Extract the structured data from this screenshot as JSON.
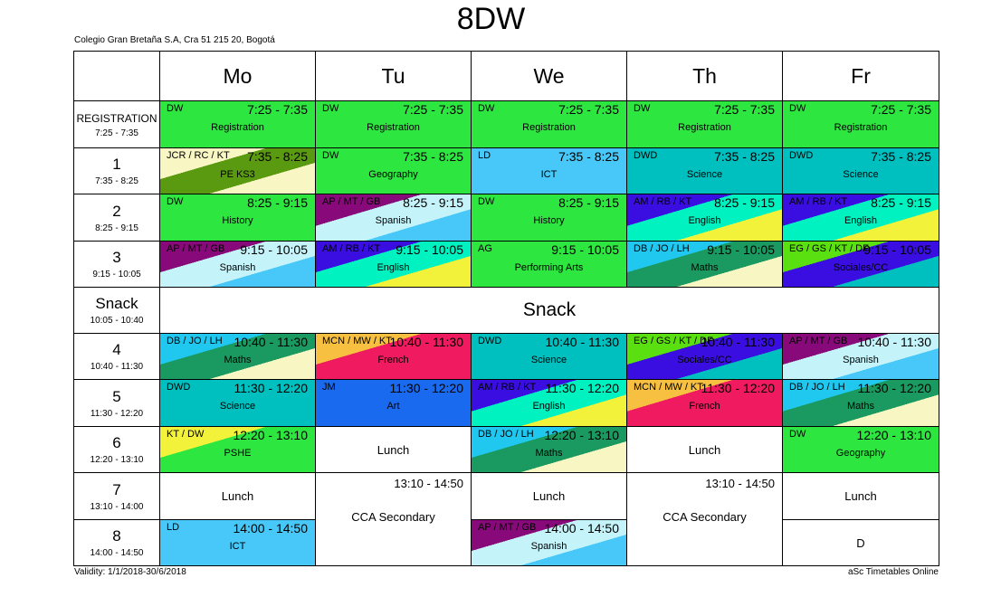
{
  "title": "8DW",
  "school": "Colegio Gran Bretaña S.A, Cra 51 215 20, Bogotá",
  "validity": "Validity: 1/1/2018-30/6/2018",
  "credit": "aSc Timetables Online",
  "days": [
    "Mo",
    "Tu",
    "We",
    "Th",
    "Fr"
  ],
  "periods": [
    {
      "name": "REGISTRATION",
      "time": "7:25 - 7:35"
    },
    {
      "name": "1",
      "time": "7:35 - 8:25"
    },
    {
      "name": "2",
      "time": "8:25 - 9:15"
    },
    {
      "name": "3",
      "time": "9:15 - 10:05"
    },
    {
      "name": "Snack",
      "time": "10:05 - 10:40"
    },
    {
      "name": "4",
      "time": "10:40 - 11:30"
    },
    {
      "name": "5",
      "time": "11:30 - 12:20"
    },
    {
      "name": "6",
      "time": "12:20 - 13:10"
    },
    {
      "name": "7",
      "time": "13:10 - 14:00"
    },
    {
      "name": "8",
      "time": "14:00 - 14:50"
    }
  ],
  "snack_label": "Snack",
  "lessons": [
    {
      "day": 0,
      "row": 0,
      "teacher": "DW",
      "time": "7:25 - 7:35",
      "subject": "Registration",
      "colors": [
        "#2ee640"
      ]
    },
    {
      "day": 1,
      "row": 0,
      "teacher": "DW",
      "time": "7:25 - 7:35",
      "subject": "Registration",
      "colors": [
        "#2ee640"
      ]
    },
    {
      "day": 2,
      "row": 0,
      "teacher": "DW",
      "time": "7:25 - 7:35",
      "subject": "Registration",
      "colors": [
        "#2ee640"
      ]
    },
    {
      "day": 3,
      "row": 0,
      "teacher": "DW",
      "time": "7:25 - 7:35",
      "subject": "Registration",
      "colors": [
        "#2ee640"
      ]
    },
    {
      "day": 4,
      "row": 0,
      "teacher": "DW",
      "time": "7:25 - 7:35",
      "subject": "Registration",
      "colors": [
        "#2ee640"
      ]
    },
    {
      "day": 0,
      "row": 1,
      "teacher": "JCR / RC / KT",
      "time": "7:35 - 8:25",
      "subject": "PE KS3",
      "colors": [
        "#f8f7c4",
        "#5a9a10",
        "#f8f7c4"
      ]
    },
    {
      "day": 1,
      "row": 1,
      "teacher": "DW",
      "time": "7:35 - 8:25",
      "subject": "Geography",
      "colors": [
        "#2ee640"
      ]
    },
    {
      "day": 2,
      "row": 1,
      "teacher": "LD",
      "time": "7:35 - 8:25",
      "subject": "ICT",
      "colors": [
        "#47c8f8"
      ]
    },
    {
      "day": 3,
      "row": 1,
      "teacher": "DWD",
      "time": "7:35 - 8:25",
      "subject": "Science",
      "colors": [
        "#00bfbf"
      ]
    },
    {
      "day": 4,
      "row": 1,
      "teacher": "DWD",
      "time": "7:35 - 8:25",
      "subject": "Science",
      "colors": [
        "#00bfbf"
      ]
    },
    {
      "day": 0,
      "row": 2,
      "teacher": "DW",
      "time": "8:25 - 9:15",
      "subject": "History",
      "colors": [
        "#2ee640"
      ]
    },
    {
      "day": 1,
      "row": 2,
      "teacher": "AP / MT / GB",
      "time": "8:25 - 9:15",
      "subject": "Spanish",
      "colors": [
        "#880a7a",
        "#c4f4fa",
        "#47c8f8"
      ]
    },
    {
      "day": 2,
      "row": 2,
      "teacher": "DW",
      "time": "8:25 - 9:15",
      "subject": "History",
      "colors": [
        "#2ee640"
      ]
    },
    {
      "day": 3,
      "row": 2,
      "teacher": "AM / RB / KT",
      "time": "8:25 - 9:15",
      "subject": "English",
      "colors": [
        "#3a0ee0",
        "#00f2c0",
        "#f2f23a"
      ]
    },
    {
      "day": 4,
      "row": 2,
      "teacher": "AM / RB / KT",
      "time": "8:25 - 9:15",
      "subject": "English",
      "colors": [
        "#3a0ee0",
        "#00f2c0",
        "#f2f23a"
      ]
    },
    {
      "day": 0,
      "row": 3,
      "teacher": "AP / MT / GB",
      "time": "9:15 - 10:05",
      "subject": "Spanish",
      "colors": [
        "#880a7a",
        "#c4f4fa",
        "#47c8f8"
      ]
    },
    {
      "day": 1,
      "row": 3,
      "teacher": "AM / RB / KT",
      "time": "9:15 - 10:05",
      "subject": "English",
      "colors": [
        "#3a0ee0",
        "#00f2c0",
        "#f2f23a"
      ]
    },
    {
      "day": 2,
      "row": 3,
      "teacher": "AG",
      "time": "9:15 - 10:05",
      "subject": "Performing Arts",
      "colors": [
        "#2ee640"
      ]
    },
    {
      "day": 3,
      "row": 3,
      "teacher": "DB / JO / LH",
      "time": "9:15 - 10:05",
      "subject": "Maths",
      "colors": [
        "#20c8f0",
        "#1a9a60",
        "#f8f7c4"
      ]
    },
    {
      "day": 4,
      "row": 3,
      "teacher": "EG / GS / KT / DF",
      "time": "9:15 - 10:05",
      "subject": "Sociales/CC",
      "colors": [
        "#5ae010",
        "#3a0ee0",
        "#00bfbf"
      ]
    },
    {
      "day": 0,
      "row": 5,
      "teacher": "DB / JO / LH",
      "time": "10:40 - 11:30",
      "subject": "Maths",
      "colors": [
        "#20c8f0",
        "#1a9a60",
        "#f8f7c4"
      ]
    },
    {
      "day": 1,
      "row": 5,
      "teacher": "MCN / MW / KT",
      "time": "10:40 - 11:30",
      "subject": "French",
      "colors": [
        "#f8c040",
        "#f01a60",
        "#f01a60"
      ]
    },
    {
      "day": 2,
      "row": 5,
      "teacher": "DWD",
      "time": "10:40 - 11:30",
      "subject": "Science",
      "colors": [
        "#00bfbf"
      ]
    },
    {
      "day": 3,
      "row": 5,
      "teacher": "EG / GS / KT / DF",
      "time": "10:40 - 11:30",
      "subject": "Sociales/CC",
      "colors": [
        "#5ae010",
        "#3a0ee0",
        "#00bfbf"
      ]
    },
    {
      "day": 4,
      "row": 5,
      "teacher": "AP / MT / GB",
      "time": "10:40 - 11:30",
      "subject": "Spanish",
      "colors": [
        "#880a7a",
        "#c4f4fa",
        "#47c8f8"
      ]
    },
    {
      "day": 0,
      "row": 6,
      "teacher": "DWD",
      "time": "11:30 - 12:20",
      "subject": "Science",
      "colors": [
        "#00bfbf"
      ]
    },
    {
      "day": 1,
      "row": 6,
      "teacher": "JM",
      "time": "11:30 - 12:20",
      "subject": "Art",
      "colors": [
        "#1a6af0"
      ]
    },
    {
      "day": 2,
      "row": 6,
      "teacher": "AM / RB / KT",
      "time": "11:30 - 12:20",
      "subject": "English",
      "colors": [
        "#3a0ee0",
        "#00f2c0",
        "#f2f23a"
      ]
    },
    {
      "day": 3,
      "row": 6,
      "teacher": "MCN / MW / KT",
      "time": "11:30 - 12:20",
      "subject": "French",
      "colors": [
        "#f8c040",
        "#f01a60",
        "#f01a60"
      ]
    },
    {
      "day": 4,
      "row": 6,
      "teacher": "DB / JO / LH",
      "time": "11:30 - 12:20",
      "subject": "Maths",
      "colors": [
        "#20c8f0",
        "#1a9a60",
        "#f8f7c4"
      ]
    },
    {
      "day": 0,
      "row": 7,
      "teacher": "KT / DW",
      "time": "12:20 - 13:10",
      "subject": "PSHE",
      "colors": [
        "#f2f23a",
        "#2ee640",
        "#2ee640"
      ]
    },
    {
      "day": 2,
      "row": 7,
      "teacher": "DB / JO / LH",
      "time": "12:20 - 13:10",
      "subject": "Maths",
      "colors": [
        "#20c8f0",
        "#1a9a60",
        "#f8f7c4"
      ]
    },
    {
      "day": 4,
      "row": 7,
      "teacher": "DW",
      "time": "12:20 - 13:10",
      "subject": "Geography",
      "colors": [
        "#2ee640"
      ]
    },
    {
      "day": 0,
      "row": 9,
      "teacher": "LD",
      "time": "14:00 - 14:50",
      "subject": "ICT",
      "colors": [
        "#47c8f8"
      ]
    },
    {
      "day": 2,
      "row": 9,
      "teacher": "AP / MT / GB",
      "time": "14:00 - 14:50",
      "subject": "Spanish",
      "colors": [
        "#880a7a",
        "#c4f4fa",
        "#47c8f8"
      ]
    }
  ],
  "plain_cells": [
    {
      "day": 1,
      "row": 7,
      "span": 1,
      "label": "Lunch"
    },
    {
      "day": 3,
      "row": 7,
      "span": 1,
      "label": "Lunch"
    },
    {
      "day": 0,
      "row": 8,
      "span": 1,
      "label": "Lunch"
    },
    {
      "day": 2,
      "row": 8,
      "span": 1,
      "label": "Lunch"
    },
    {
      "day": 4,
      "row": 8,
      "span": 1,
      "label": "Lunch"
    },
    {
      "day": 4,
      "row": 9,
      "span": 1,
      "label": "D"
    }
  ],
  "cca_cells": [
    {
      "day": 1,
      "row": 8,
      "span": 2,
      "time": "13:10 - 14:50",
      "label": "CCA Secondary"
    },
    {
      "day": 3,
      "row": 8,
      "span": 2,
      "time": "13:10 - 14:50",
      "label": "CCA Secondary"
    }
  ]
}
